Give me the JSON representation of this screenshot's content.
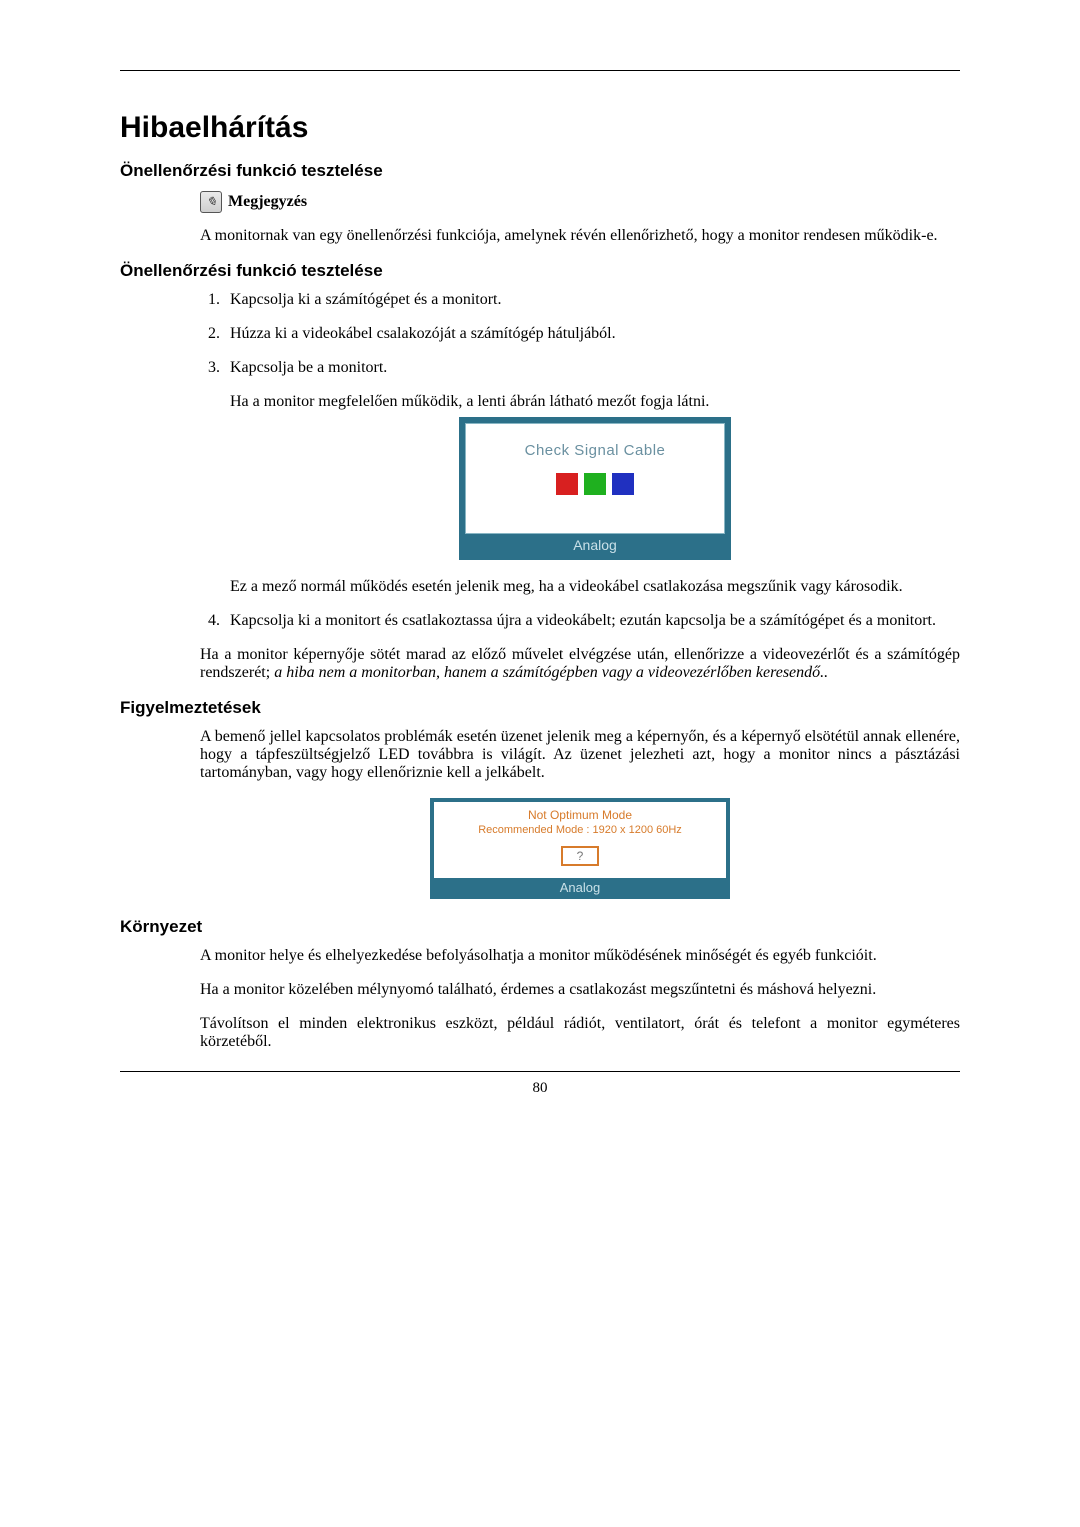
{
  "page": {
    "number": "80",
    "title": "Hibaelhárítás"
  },
  "sections": {
    "s1": {
      "heading": "Önellenőrzési funkció tesztelése"
    },
    "s2": {
      "heading": "Önellenőrzési funkció tesztelése"
    },
    "s3": {
      "heading": "Figyelmeztetések"
    },
    "s4": {
      "heading": "Környezet"
    }
  },
  "note": {
    "label": "Megjegyzés",
    "text": "A monitornak van egy önellenőrzési funkciója, amelynek révén ellenőrizhető, hogy a monitor rendesen működik-e."
  },
  "steps": {
    "1": "Kapcsolja ki a számítógépet és a monitort.",
    "2": "Húzza ki a videokábel csalakozóját a számítógép hátuljából.",
    "3": "Kapcsolja be a monitort.",
    "3a": "Ha a monitor megfelelően működik, a lenti ábrán látható mezőt fogja látni.",
    "3b": "Ez a mező normál működés esetén jelenik meg, ha a videokábel csatlakozása megszűnik vagy károsodik.",
    "4": "Kapcsolja ki a monitort és csatlakoztassa újra a videokábelt; ezután kapcsolja be a számítógépet és a monitort."
  },
  "aftersteps": {
    "p1a": "Ha a monitor képernyője sötét marad az előző művelet elvégzése után, ellenőrizze a videovezérlőt és a számítógép rendszerét; ",
    "p1b": "a hiba nem a monitorban, hanem a számítógépben vagy a videovezérlőben keresendő."
  },
  "warnings": {
    "p1": "A bemenő jellel kapcsolatos problémák esetén üzenet jelenik meg a képernyőn, és a képernyő elsötétül annak ellenére, hogy a tápfeszültségjelző LED továbbra is világít. Az üzenet jelezheti azt, hogy a monitor nincs a pásztázási tartományban, vagy hogy ellenőriznie kell a jelkábelt."
  },
  "environment": {
    "p1": "A monitor helye és elhelyezkedése befolyásolhatja a monitor működésének minőségét és egyéb funkcióit.",
    "p2": "Ha a monitor közelében mélynyomó található, érdemes a csatlakozást megszűntetni és máshová helyezni.",
    "p3": "Távolítson el minden elektronikus eszközt, például rádiót, ventilatort, órát és telefont a monitor egyméteres körzetéből."
  },
  "fig1": {
    "title": "Check Signal Cable",
    "footer": "Analog",
    "colors": {
      "red": "#d82020",
      "green": "#1fb01f",
      "blue": "#2030c0"
    },
    "frame_color": "#2c7089",
    "title_color": "#6a90a0",
    "footer_text_color": "#c9e0e8"
  },
  "fig2": {
    "t1": "Not Optimum Mode",
    "t2": "Recommended Mode : 1920 x 1200  60Hz",
    "q": "?",
    "footer": "Analog",
    "frame_color": "#2c7089",
    "text_color": "#d77b2b",
    "border_color": "#d77b2b",
    "footer_text_color": "#c9e0e8"
  }
}
